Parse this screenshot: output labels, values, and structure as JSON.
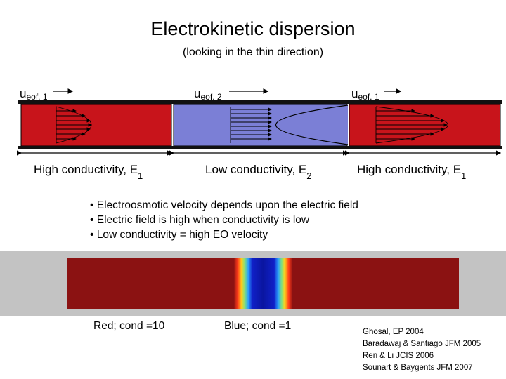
{
  "title": "Electrokinetic dispersion",
  "subtitle": "(looking in the thin direction)",
  "velocity_labels": [
    {
      "main": "u",
      "sub": "eof, 1"
    },
    {
      "main": "u",
      "sub": "eof, 2"
    },
    {
      "main": "u",
      "sub": "eof, 1"
    }
  ],
  "conductivity_labels": [
    {
      "text": "High conductivity, E",
      "sub": "1"
    },
    {
      "text": "Low conductivity, E",
      "sub": "2"
    },
    {
      "text": "High conductivity, E",
      "sub": "1"
    }
  ],
  "bullets": [
    "• Electroosmotic velocity depends upon the electric field",
    "• Electric field is high when conductivity is low",
    "• Low conductivity = high EO velocity"
  ],
  "legend": {
    "red": "Red; cond =10",
    "blue": "Blue; cond =1"
  },
  "references": [
    "Ghosal, EP 2004",
    "Baradawaj & Santiago JFM 2005",
    "Ren & Li JCIS 2006",
    "Sounart & Baygents JFM 2007"
  ],
  "colors": {
    "high_conductivity_region": "#c8141b",
    "low_conductivity_region": "#7b7fd6",
    "strip_high": "#8b1212",
    "strip_low": "#0a15a0",
    "band": "#c3c3c3"
  }
}
